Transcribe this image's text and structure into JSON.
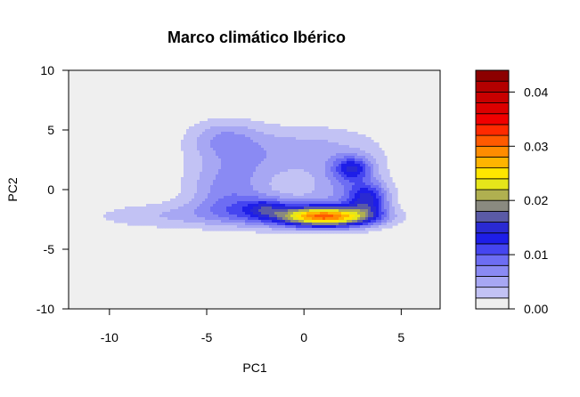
{
  "chart_data": {
    "type": "heatmap",
    "subtype": "filled-contour-density",
    "title": "Marco climático Ibérico",
    "xlabel": "PC1",
    "ylabel": "PC2",
    "xlim": [
      -12.1,
      7
    ],
    "ylim": [
      -10,
      10
    ],
    "xticks": [
      -10,
      -5,
      0,
      5
    ],
    "yticks": [
      -10,
      -5,
      0,
      5,
      10
    ],
    "x_tick_labels": [
      "-10",
      "-5",
      "0",
      "5"
    ],
    "y_tick_labels": [
      "-10",
      "-5",
      "0",
      "5",
      "10"
    ],
    "panel_background": "#efefef",
    "grid": false,
    "colorbar": {
      "range": [
        0,
        0.044
      ],
      "ticks": [
        0.0,
        0.01,
        0.02,
        0.03,
        0.04
      ],
      "tick_labels": [
        "0.00",
        "0.01",
        "0.02",
        "0.03",
        "0.04"
      ],
      "levels": [
        {
          "from": 0.0,
          "to": 0.002,
          "color": "#efefef"
        },
        {
          "from": 0.002,
          "to": 0.004,
          "color": "#c2c2f4"
        },
        {
          "from": 0.004,
          "to": 0.006,
          "color": "#a7a7f3"
        },
        {
          "from": 0.006,
          "to": 0.008,
          "color": "#8a8af3"
        },
        {
          "from": 0.008,
          "to": 0.01,
          "color": "#6d6df3"
        },
        {
          "from": 0.01,
          "to": 0.012,
          "color": "#4545f0"
        },
        {
          "from": 0.012,
          "to": 0.014,
          "color": "#1e1ee8"
        },
        {
          "from": 0.014,
          "to": 0.016,
          "color": "#2a2ad2"
        },
        {
          "from": 0.016,
          "to": 0.018,
          "color": "#5a5aa6"
        },
        {
          "from": 0.018,
          "to": 0.02,
          "color": "#8a8a80"
        },
        {
          "from": 0.02,
          "to": 0.022,
          "color": "#b0b050"
        },
        {
          "from": 0.022,
          "to": 0.024,
          "color": "#e6e61a"
        },
        {
          "from": 0.024,
          "to": 0.026,
          "color": "#ffe600"
        },
        {
          "from": 0.026,
          "to": 0.028,
          "color": "#ffb400"
        },
        {
          "from": 0.028,
          "to": 0.03,
          "color": "#ff8c00"
        },
        {
          "from": 0.03,
          "to": 0.032,
          "color": "#ff5a00"
        },
        {
          "from": 0.032,
          "to": 0.034,
          "color": "#ff2a00"
        },
        {
          "from": 0.034,
          "to": 0.036,
          "color": "#f00000"
        },
        {
          "from": 0.036,
          "to": 0.038,
          "color": "#dc0000"
        },
        {
          "from": 0.038,
          "to": 0.04,
          "color": "#c80000"
        },
        {
          "from": 0.04,
          "to": 0.042,
          "color": "#b40000"
        },
        {
          "from": 0.042,
          "to": 0.044,
          "color": "#8c0000"
        }
      ]
    },
    "density_components": [
      {
        "cx": 1.2,
        "cy": -2.3,
        "sx": 1.7,
        "sy": 0.6,
        "w": 0.027
      },
      {
        "cx": 3.3,
        "cy": -0.8,
        "sx": 0.75,
        "sy": 1.0,
        "w": 0.012
      },
      {
        "cx": 2.5,
        "cy": 1.8,
        "sx": 0.7,
        "sy": 0.7,
        "w": 0.01
      },
      {
        "cx": 2.0,
        "cy": 0.2,
        "sx": 1.3,
        "sy": 1.4,
        "w": 0.005
      },
      {
        "cx": -1.8,
        "cy": -1.8,
        "sx": 2.2,
        "sy": 0.9,
        "w": 0.0085
      },
      {
        "cx": -2.0,
        "cy": -1.5,
        "sx": 0.6,
        "sy": 0.5,
        "w": 0.004
      },
      {
        "cx": -3.5,
        "cy": 2.0,
        "sx": 1.8,
        "sy": 2.0,
        "w": 0.0045
      },
      {
        "cx": 0.5,
        "cy": 3.3,
        "sx": 2.6,
        "sy": 1.5,
        "w": 0.0045
      },
      {
        "cx": -4.2,
        "cy": 4.4,
        "sx": 1.3,
        "sy": 1.1,
        "w": 0.004
      },
      {
        "cx": -4.0,
        "cy": -0.2,
        "sx": 1.4,
        "sy": 1.3,
        "w": 0.004
      },
      {
        "cx": -7.0,
        "cy": -2.2,
        "sx": 3.0,
        "sy": 0.8,
        "w": 0.0036
      }
    ]
  }
}
